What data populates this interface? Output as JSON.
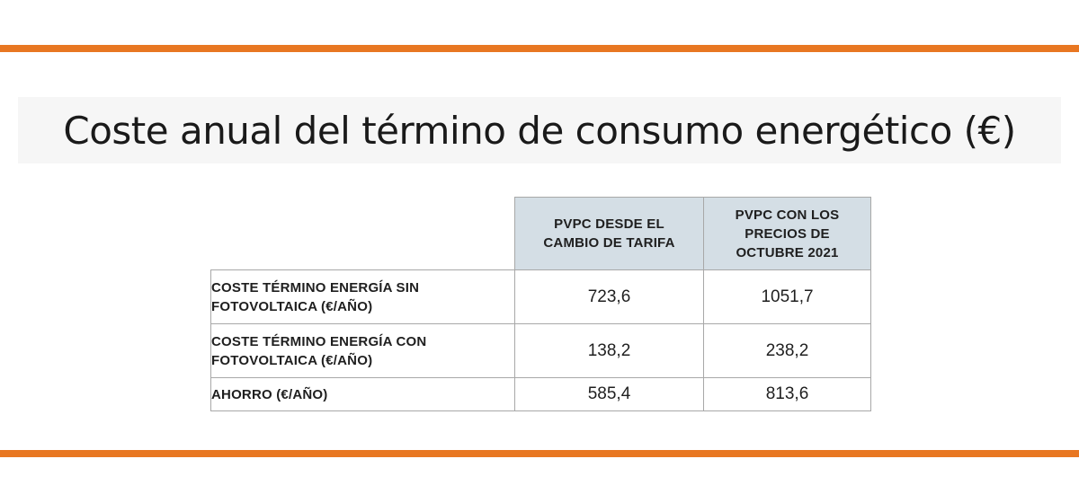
{
  "colors": {
    "accent_rule": "#e87722",
    "header_fill": "#d4dee5",
    "grid": "#a8a8a8"
  },
  "title": "Coste anual del término de consumo energético (€)",
  "table": {
    "columns": [
      "PVPC DESDE EL CAMBIO DE TARIFA",
      "PVPC CON LOS PRECIOS DE OCTUBRE 2021"
    ],
    "rows": [
      {
        "label": "COSTE TÉRMINO ENERGÍA SIN FOTOVOLTAICA (€/AÑO)",
        "values": [
          "723,6",
          "1051,7"
        ]
      },
      {
        "label": "COSTE TÉRMINO ENERGÍA CON FOTOVOLTAICA (€/AÑO)",
        "values": [
          "138,2",
          "238,2"
        ]
      },
      {
        "label": "AHORRO (€/AÑO)",
        "values": [
          "585,4",
          "813,6"
        ]
      }
    ]
  }
}
